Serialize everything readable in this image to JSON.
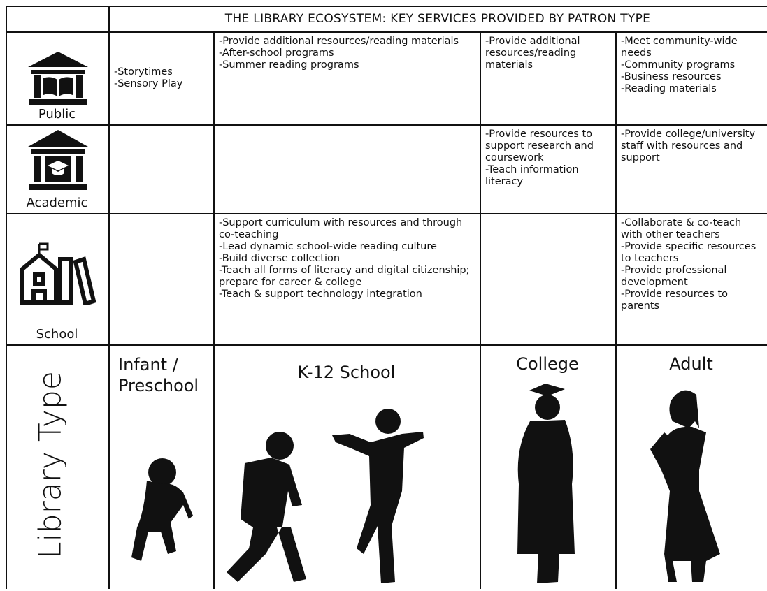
{
  "title": "THE LIBRARY ECOSYSTEM: KEY SERVICES PROVIDED BY PATRON TYPE",
  "rows": [
    {
      "label": "Public",
      "cells": [
        [
          "-Storytimes",
          "-Sensory Play"
        ],
        [
          "-Provide additional resources/reading materials",
          "-After-school programs",
          "-Summer reading programs"
        ],
        [
          "-Provide additional resources/reading materials"
        ],
        [
          "-Meet community-wide needs",
          "-Community programs",
          "-Business resources",
          "-Reading materials"
        ]
      ]
    },
    {
      "label": "Academic",
      "cells": [
        [],
        [],
        [
          "-Provide resources to support research and coursework",
          "-Teach information literacy"
        ],
        [
          "-Provide college/university staff with resources and support"
        ]
      ]
    },
    {
      "label": "School",
      "cells": [
        [],
        [
          "-Support curriculum with resources and through co-teaching",
          "-Lead dynamic school-wide reading culture",
          "-Build diverse collection",
          "-Teach all forms of literacy and digital citizenship; prepare for career & college",
          "-Teach & support technology integration"
        ],
        [],
        [
          "-Collaborate & co-teach with other teachers",
          "-Provide specific resources to teachers",
          "-Provide professional development",
          "-Provide resources to parents"
        ]
      ]
    }
  ],
  "axis_label": "Library Type",
  "patron_types": [
    "Infant / Preschool",
    "K-12 School",
    "College",
    "Adult"
  ]
}
